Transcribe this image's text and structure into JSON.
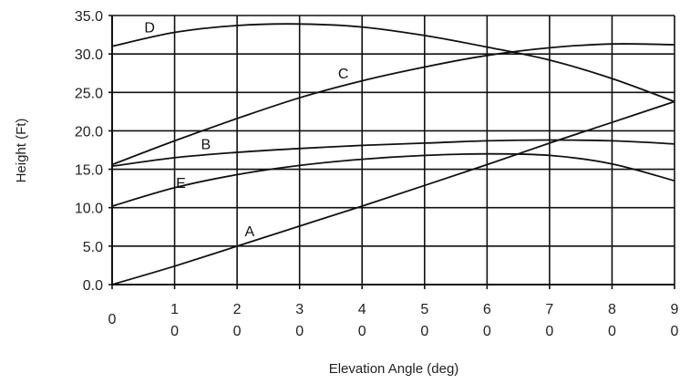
{
  "chart_data": {
    "type": "line",
    "title": "",
    "xlabel": "Elevation Angle (deg)",
    "ylabel": "Height (Ft)",
    "xlim": [
      0,
      90
    ],
    "ylim": [
      0,
      35
    ],
    "x_ticks": [
      {
        "value": 0,
        "line1": "0",
        "line2": ""
      },
      {
        "value": 10,
        "line1": "1",
        "line2": "0"
      },
      {
        "value": 20,
        "line1": "2",
        "line2": "0"
      },
      {
        "value": 30,
        "line1": "3",
        "line2": "0"
      },
      {
        "value": 40,
        "line1": "4",
        "line2": "0"
      },
      {
        "value": 50,
        "line1": "5",
        "line2": "0"
      },
      {
        "value": 60,
        "line1": "6",
        "line2": "0"
      },
      {
        "value": 70,
        "line1": "7",
        "line2": "0"
      },
      {
        "value": 80,
        "line1": "8",
        "line2": "0"
      },
      {
        "value": 90,
        "line1": "9",
        "line2": "0"
      }
    ],
    "y_ticks": [
      {
        "value": 0,
        "label": "0.0"
      },
      {
        "value": 5,
        "label": "5.0"
      },
      {
        "value": 10,
        "label": "10.0"
      },
      {
        "value": 15,
        "label": "15.0"
      },
      {
        "value": 20,
        "label": "20.0"
      },
      {
        "value": 25,
        "label": "25.0"
      },
      {
        "value": 30,
        "label": "30.0"
      },
      {
        "value": 35,
        "label": "35.0"
      }
    ],
    "grid": true,
    "legend": "none",
    "line_color": "#111111",
    "series": [
      {
        "name": "A",
        "label_at": [
          22,
          6.3
        ],
        "x": [
          0,
          10,
          20,
          30,
          40,
          50,
          60,
          70,
          80,
          90
        ],
        "y": [
          0.0,
          2.4,
          5.0,
          7.6,
          10.2,
          12.9,
          15.6,
          18.4,
          21.1,
          23.8
        ]
      },
      {
        "name": "B",
        "label_at": [
          15,
          17.6
        ],
        "x": [
          0,
          10,
          20,
          30,
          40,
          50,
          60,
          70,
          80,
          90
        ],
        "y": [
          15.4,
          16.5,
          17.2,
          17.7,
          18.1,
          18.4,
          18.7,
          18.8,
          18.7,
          18.3
        ]
      },
      {
        "name": "C",
        "label_at": [
          37,
          26.8
        ],
        "x": [
          0,
          10,
          20,
          30,
          40,
          50,
          60,
          70,
          80,
          90
        ],
        "y": [
          15.6,
          18.7,
          21.6,
          24.3,
          26.5,
          28.3,
          29.8,
          30.8,
          31.3,
          31.2
        ]
      },
      {
        "name": "D",
        "label_at": [
          6,
          32.8
        ],
        "x": [
          0,
          10,
          20,
          30,
          40,
          50,
          60,
          70,
          80,
          90
        ],
        "y": [
          31.0,
          32.8,
          33.7,
          33.9,
          33.5,
          32.4,
          30.9,
          29.2,
          26.8,
          23.8
        ]
      },
      {
        "name": "E",
        "label_at": [
          11,
          12.6
        ],
        "x": [
          0,
          10,
          20,
          30,
          40,
          50,
          60,
          70,
          80,
          90
        ],
        "y": [
          10.2,
          12.6,
          14.3,
          15.5,
          16.3,
          16.8,
          17.0,
          16.8,
          15.7,
          13.5
        ]
      }
    ]
  }
}
